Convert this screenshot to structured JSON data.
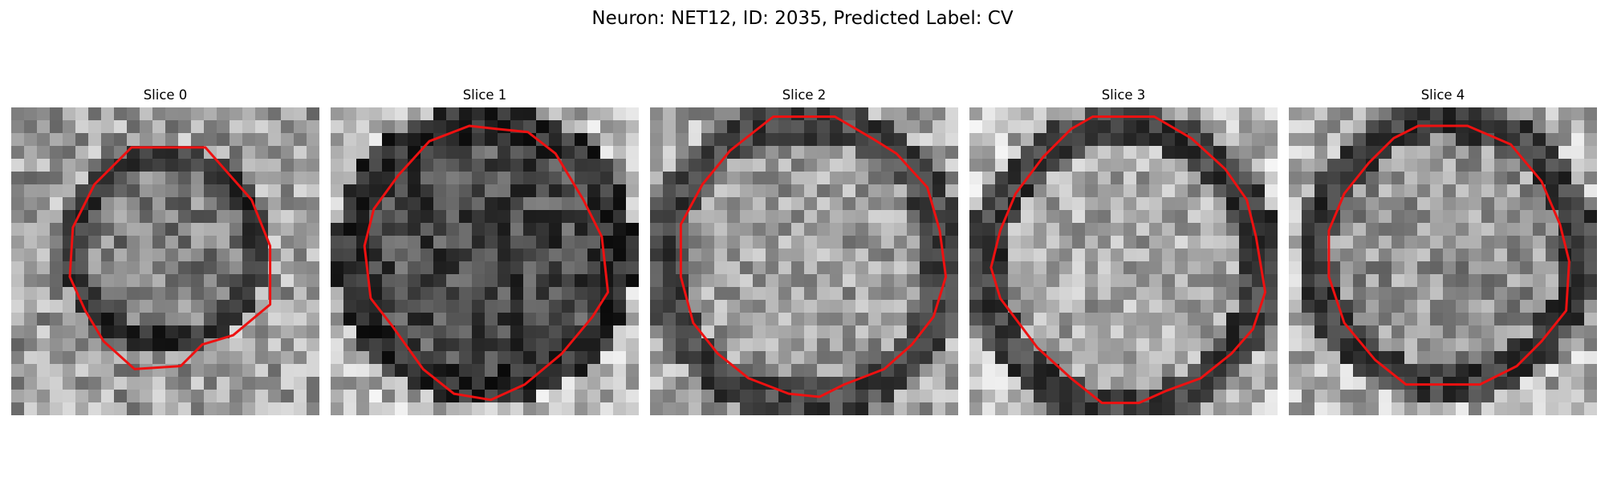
{
  "figure": {
    "title": "Neuron: NET12, ID: 2035, Predicted Label: CV"
  },
  "colors": {
    "contour": "#ee1111",
    "background": "#ffffff",
    "grayscale_dark": "#0a0a0a",
    "grayscale_light": "#f4f4f4"
  },
  "panels": [
    {
      "title": "Slice 0",
      "icon": "grayscale-microscopy-image"
    },
    {
      "title": "Slice 1",
      "icon": "grayscale-microscopy-image"
    },
    {
      "title": "Slice 2",
      "icon": "grayscale-microscopy-image"
    },
    {
      "title": "Slice 3",
      "icon": "grayscale-microscopy-image"
    },
    {
      "title": "Slice 4",
      "icon": "grayscale-microscopy-image"
    }
  ]
}
